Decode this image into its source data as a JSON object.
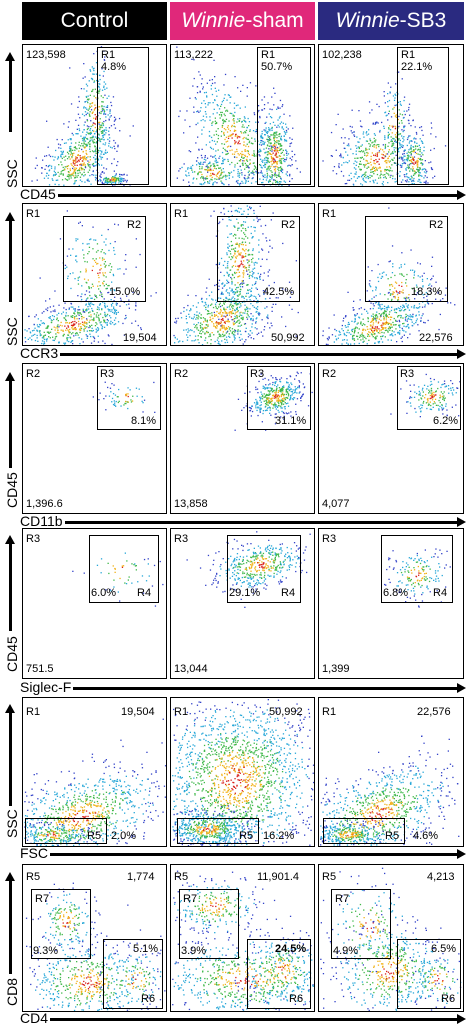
{
  "header": {
    "col1": {
      "plain": "Control",
      "bg": "#000000"
    },
    "col2": {
      "italic": "Winnie",
      "plain": "-sham",
      "bg": "#e0287a"
    },
    "col3": {
      "italic": "Winnie",
      "plain": "-SB3",
      "bg": "#2a2a80"
    }
  },
  "rows": [
    {
      "y_title": "SSC",
      "x_title": "CD45",
      "panels": [
        {
          "count": "123,598",
          "gate": "R1",
          "pct": "4.8%"
        },
        {
          "count": "113,222",
          "gate": "R1",
          "pct": "50.7%"
        },
        {
          "count": "102,238",
          "gate": "R1",
          "pct": "22.1%"
        }
      ]
    },
    {
      "y_title": "SSC",
      "x_title": "CCR3",
      "panels": [
        {
          "parent": "R1",
          "gate": "R2",
          "pct": "15.0%",
          "count": "19,504"
        },
        {
          "parent": "R1",
          "gate": "R2",
          "pct": "42.5%",
          "count": "50,992"
        },
        {
          "parent": "R1",
          "gate": "R2",
          "pct": "18.3%",
          "count": "22,576"
        }
      ]
    },
    {
      "y_title": "CD45",
      "x_title": "CD11b",
      "panels": [
        {
          "parent": "R2",
          "gate": "R3",
          "pct": "8.1%",
          "count": "1,396.6"
        },
        {
          "parent": "R2",
          "gate": "R3",
          "pct": "31.1%",
          "count": "13,858"
        },
        {
          "parent": "R2",
          "gate": "R3",
          "pct": "6.2%",
          "count": "4,077"
        }
      ]
    },
    {
      "y_title": "CD45",
      "x_title": "Siglec-F",
      "panels": [
        {
          "parent": "R3",
          "gate": "R4",
          "pct": "6.0%",
          "count": "751.5"
        },
        {
          "parent": "R3",
          "gate": "R4",
          "pct": "29.1%",
          "count": "13,044"
        },
        {
          "parent": "R3",
          "gate": "R4",
          "pct": "6.8%",
          "count": "1,399"
        }
      ]
    },
    {
      "y_title": "SSC",
      "x_title": "FSC",
      "panels": [
        {
          "parent": "R1",
          "count": "19,504",
          "gate": "R5",
          "pct": "2.0%"
        },
        {
          "parent": "R1",
          "count": "50,992",
          "gate": "R5",
          "pct": "16.2%"
        },
        {
          "parent": "R1",
          "count": "22,576",
          "gate": "R5",
          "pct": "4.6%"
        }
      ]
    },
    {
      "y_title": "CD8",
      "x_title": "CD4",
      "panels": [
        {
          "parent": "R5",
          "count": "1,774",
          "gate_a": "R7",
          "pct_a": "9.3%",
          "gate_b": "R6",
          "pct_b": "5.1%"
        },
        {
          "parent": "R5",
          "count": "11,901.4",
          "gate_a": "R7",
          "pct_a": "3.9%",
          "gate_b": "R6",
          "pct_b": "24.5%"
        },
        {
          "parent": "R5",
          "count": "4,213",
          "gate_a": "R7",
          "pct_a": "4.9%",
          "gate_b": "R6",
          "pct_b": "6.5%"
        }
      ]
    }
  ]
}
